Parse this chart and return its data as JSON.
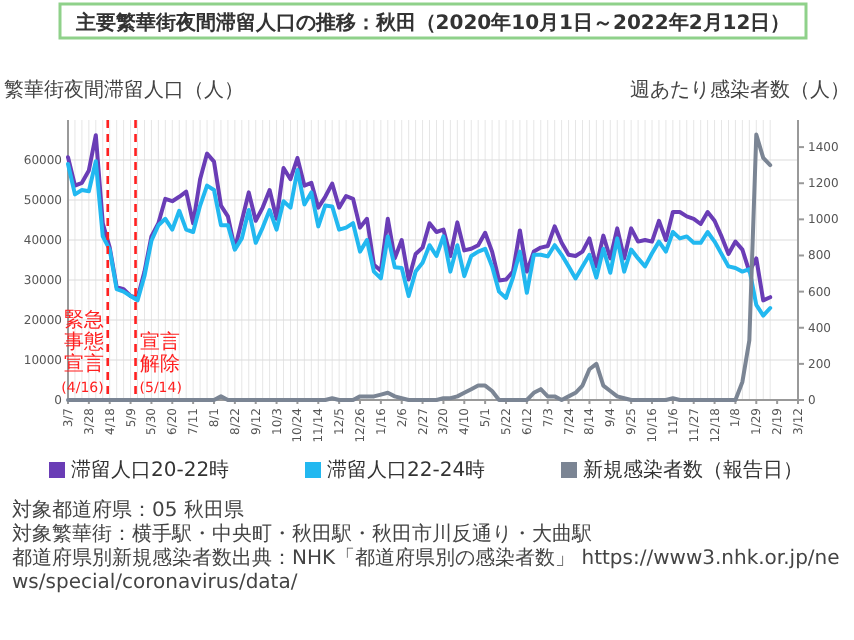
{
  "chart_data": {
    "type": "line",
    "title": "主要繁華街夜間滞留人口の推移：秋田（2020年10月1日～2022年2月12日）",
    "ylabel": "繁華街夜間滞留人口（人）",
    "y2label": "週あたり感染者数（人）",
    "x": [
      "2020-03-07",
      "2020-03-14",
      "2020-03-21",
      "2020-03-28",
      "2020-04-04",
      "2020-04-11",
      "2020-04-18",
      "2020-04-25",
      "2020-05-02",
      "2020-05-09",
      "2020-05-16",
      "2020-05-23",
      "2020-05-30",
      "2020-06-06",
      "2020-06-13",
      "2020-06-20",
      "2020-06-27",
      "2020-07-04",
      "2020-07-11",
      "2020-07-18",
      "2020-07-25",
      "2020-08-01",
      "2020-08-08",
      "2020-08-15",
      "2020-08-22",
      "2020-08-29",
      "2020-09-05",
      "2020-09-12",
      "2020-09-19",
      "2020-09-26",
      "2020-10-03",
      "2020-10-10",
      "2020-10-17",
      "2020-10-24",
      "2020-10-31",
      "2020-11-07",
      "2020-11-14",
      "2020-11-21",
      "2020-11-28",
      "2020-12-05",
      "2020-12-12",
      "2020-12-19",
      "2020-12-26",
      "2021-01-02",
      "2021-01-09",
      "2021-01-16",
      "2021-01-23",
      "2021-01-30",
      "2021-02-06",
      "2021-02-13",
      "2021-02-20",
      "2021-02-27",
      "2021-03-06",
      "2021-03-13",
      "2021-03-20",
      "2021-03-27",
      "2021-04-03",
      "2021-04-10",
      "2021-04-17",
      "2021-04-24",
      "2021-05-01",
      "2021-05-08",
      "2021-05-15",
      "2021-05-22",
      "2021-05-29",
      "2021-06-05",
      "2021-06-12",
      "2021-06-19",
      "2021-06-26",
      "2021-07-03",
      "2021-07-10",
      "2021-07-17",
      "2021-07-24",
      "2021-07-31",
      "2021-08-07",
      "2021-08-14",
      "2021-08-21",
      "2021-08-28",
      "2021-09-04",
      "2021-09-11",
      "2021-09-18",
      "2021-09-25",
      "2021-10-02",
      "2021-10-09",
      "2021-10-16",
      "2021-10-23",
      "2021-10-30",
      "2021-11-06",
      "2021-11-13",
      "2021-11-20",
      "2021-11-27",
      "2021-12-04",
      "2021-12-11",
      "2021-12-18",
      "2021-12-25",
      "2022-01-01",
      "2022-01-08",
      "2022-01-15",
      "2022-01-22",
      "2022-01-29",
      "2022-02-05",
      "2022-02-12"
    ],
    "series": [
      {
        "name": "滞留人口20-22時",
        "color": "#6a3db6",
        "values": [
          60700,
          53600,
          54300,
          57400,
          66200,
          44200,
          38100,
          28200,
          27700,
          26000,
          25500,
          32100,
          40900,
          44200,
          50300,
          49700,
          50800,
          52100,
          44200,
          55200,
          61600,
          59600,
          48600,
          45900,
          37800,
          44800,
          51900,
          44800,
          48100,
          52500,
          45300,
          58000,
          55200,
          60500,
          53600,
          54300,
          48100,
          50800,
          54100,
          48100,
          51000,
          50300,
          43100,
          45300,
          33800,
          32300,
          45300,
          35400,
          40000,
          30100,
          36500,
          38100,
          44200,
          42000,
          42600,
          36000,
          44400,
          37400,
          37800,
          38700,
          41800,
          37100,
          29900,
          30100,
          32100,
          42400,
          32100,
          37100,
          38100,
          38500,
          43400,
          39300,
          36300,
          36000,
          37100,
          40400,
          33400,
          41100,
          35400,
          42900,
          35400,
          42900,
          39600,
          40000,
          39600,
          44800,
          40000,
          47000,
          47000,
          45900,
          45300,
          44000,
          47000,
          44800,
          40900,
          36500,
          39600,
          37600,
          32100,
          35400,
          24900,
          25700
        ]
      },
      {
        "name": "滞留人口22-24時",
        "color": "#22b8f0",
        "values": [
          59000,
          51400,
          52500,
          52200,
          59700,
          40900,
          37600,
          27700,
          27100,
          26000,
          24900,
          31000,
          39800,
          43700,
          45300,
          42600,
          47300,
          42600,
          42000,
          48600,
          53600,
          52500,
          43700,
          43700,
          37600,
          40400,
          47500,
          39300,
          43100,
          47500,
          42600,
          49700,
          48100,
          57500,
          48900,
          51900,
          43400,
          48600,
          48400,
          42600,
          43100,
          44200,
          37100,
          40000,
          32100,
          30400,
          40900,
          33200,
          33000,
          26000,
          32100,
          34300,
          38700,
          36000,
          40900,
          32100,
          38700,
          31000,
          36000,
          37100,
          37800,
          33400,
          27100,
          25500,
          30600,
          37100,
          26800,
          36300,
          36300,
          35900,
          38700,
          36300,
          33400,
          30400,
          33400,
          36300,
          30600,
          37800,
          31800,
          40400,
          32100,
          37600,
          35400,
          33400,
          36700,
          39600,
          37100,
          42000,
          40400,
          40900,
          39300,
          39300,
          42000,
          39600,
          36500,
          33400,
          33000,
          32100,
          32700,
          23800,
          21100,
          23000
        ]
      },
      {
        "name": "新規感染者数（報告日）",
        "color": "#7b8594",
        "axis": "y2",
        "values": [
          0,
          0,
          0,
          0,
          0,
          0,
          0,
          0,
          0,
          0,
          0,
          0,
          0,
          0,
          0,
          0,
          0,
          0,
          0,
          0,
          0,
          0,
          20,
          0,
          0,
          0,
          0,
          0,
          0,
          0,
          0,
          0,
          0,
          0,
          0,
          0,
          0,
          0,
          10,
          0,
          0,
          0,
          20,
          20,
          20,
          30,
          40,
          20,
          10,
          0,
          0,
          0,
          0,
          0,
          10,
          10,
          20,
          40,
          60,
          80,
          80,
          50,
          0,
          0,
          0,
          0,
          0,
          40,
          60,
          20,
          20,
          0,
          20,
          40,
          80,
          170,
          200,
          80,
          50,
          20,
          10,
          0,
          0,
          0,
          0,
          0,
          0,
          10,
          0,
          0,
          0,
          0,
          0,
          0,
          0,
          0,
          0,
          100,
          330,
          1470,
          1340,
          1300
        ]
      }
    ],
    "xlim": [
      "2020-03-07",
      "2022-03-12"
    ],
    "xticks": [
      {
        "value": "2020-03-07",
        "label": "3/7"
      },
      {
        "value": "2020-03-28",
        "label": "3/28"
      },
      {
        "value": "2020-04-18",
        "label": "4/18"
      },
      {
        "value": "2020-05-09",
        "label": "5/9"
      },
      {
        "value": "2020-05-30",
        "label": "5/30"
      },
      {
        "value": "2020-06-20",
        "label": "6/20"
      },
      {
        "value": "2020-07-11",
        "label": "7/11"
      },
      {
        "value": "2020-08-01",
        "label": "8/1"
      },
      {
        "value": "2020-08-22",
        "label": "8/22"
      },
      {
        "value": "2020-09-12",
        "label": "9/12"
      },
      {
        "value": "2020-10-03",
        "label": "10/3"
      },
      {
        "value": "2020-10-24",
        "label": "10/24"
      },
      {
        "value": "2020-11-14",
        "label": "11/14"
      },
      {
        "value": "2020-12-05",
        "label": "12/5"
      },
      {
        "value": "2020-12-26",
        "label": "12/26"
      },
      {
        "value": "2021-01-16",
        "label": "1/16"
      },
      {
        "value": "2021-02-06",
        "label": "2/6"
      },
      {
        "value": "2021-02-27",
        "label": "2/27"
      },
      {
        "value": "2021-03-20",
        "label": "3/20"
      },
      {
        "value": "2021-04-10",
        "label": "4/10"
      },
      {
        "value": "2021-05-01",
        "label": "5/1"
      },
      {
        "value": "2021-05-22",
        "label": "5/22"
      },
      {
        "value": "2021-06-12",
        "label": "6/12"
      },
      {
        "value": "2021-07-03",
        "label": "7/3"
      },
      {
        "value": "2021-07-24",
        "label": "7/24"
      },
      {
        "value": "2021-08-14",
        "label": "8/14"
      },
      {
        "value": "2021-09-04",
        "label": "9/4"
      },
      {
        "value": "2021-09-25",
        "label": "9/25"
      },
      {
        "value": "2021-10-16",
        "label": "10/16"
      },
      {
        "value": "2021-11-06",
        "label": "11/6"
      },
      {
        "value": "2021-11-27",
        "label": "11/27"
      },
      {
        "value": "2021-12-18",
        "label": "12/18"
      },
      {
        "value": "2022-01-08",
        "label": "1/8"
      },
      {
        "value": "2022-01-29",
        "label": "1/29"
      },
      {
        "value": "2022-02-19",
        "label": "2/19"
      },
      {
        "value": "2022-03-12",
        "label": "3/12"
      }
    ],
    "ylim": [
      0,
      70000
    ],
    "yticks": [
      0,
      10000,
      20000,
      30000,
      40000,
      50000,
      60000
    ],
    "y2lim": [
      0,
      1550
    ],
    "y2ticks": [
      0,
      200,
      400,
      600,
      800,
      1000,
      1200,
      1400
    ],
    "ref_lines": [
      {
        "axis": "x",
        "value": "2020-04-16",
        "label": "緊急事態宣言(4/16)",
        "color": "#ff2020",
        "line_style": "dashed"
      },
      {
        "axis": "x",
        "value": "2020-05-14",
        "label": "宣言解除(5/14)",
        "color": "#ff2020",
        "line_style": "dashed"
      }
    ],
    "grid": true,
    "legend": "bottom",
    "line_style": "solid",
    "marker": "none",
    "annotations": [
      "対象都道府県：05 秋田県",
      "対象繁華街：横手駅・中央町・秋田駅・秋田市川反通り・大曲駅",
      "都道府県別新規感染者数出典：NHK「都道府県別の感染者数」 https://www3.nhk.or.jp/news/special/coronavirus/data/"
    ]
  }
}
